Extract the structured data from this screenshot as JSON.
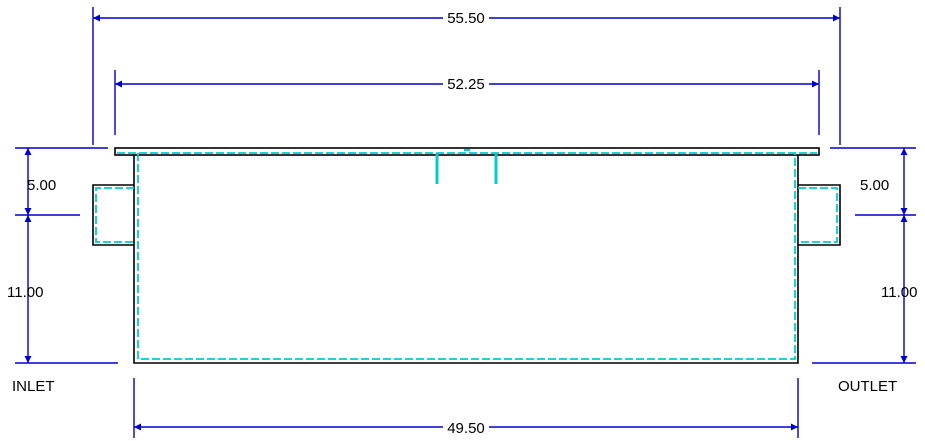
{
  "dimensions": {
    "overall_width": "55.50",
    "flange_width": "52.25",
    "body_width": "49.50",
    "inlet_top_offset": "5.00",
    "outlet_top_offset": "5.00",
    "inlet_height": "11.00",
    "outlet_height": "11.00"
  },
  "labels": {
    "inlet": "INLET",
    "outlet": "OUTLET"
  },
  "colors": {
    "dimension": "#0000cc",
    "outline": "#000000",
    "hidden": "#00cccc",
    "background": "#ffffff"
  }
}
